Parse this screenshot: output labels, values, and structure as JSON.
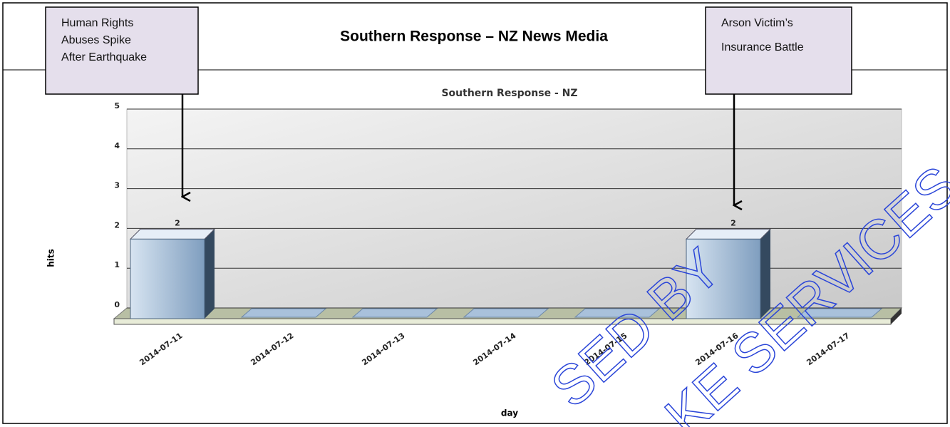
{
  "chart_data": {
    "type": "bar3d",
    "page_title": "Southern Response – NZ News Media",
    "title": "Southern Response - NZ",
    "x_label": "day",
    "y_label": "hits",
    "categories": [
      "2014-07-11",
      "2014-07-12",
      "2014-07-13",
      "2014-07-14",
      "2014-07-15",
      "2014-07-16",
      "2014-07-17"
    ],
    "values": [
      2,
      0,
      0,
      0,
      0,
      2,
      0
    ],
    "color": "#a9c1db",
    "ylim": [
      0,
      5
    ],
    "yticks": [
      0,
      1,
      2,
      3,
      4,
      5
    ],
    "grid": true,
    "annotations": [
      {
        "lines": [
          "Human Rights",
          "Abuses Spike",
          "After Earthquake"
        ],
        "category": 0
      },
      {
        "lines": [
          "Arson Victim’s",
          "Insurance Battle"
        ],
        "category": 5
      }
    ],
    "watermark": [
      "SED BY",
      "KE SERVICES LTD"
    ]
  }
}
